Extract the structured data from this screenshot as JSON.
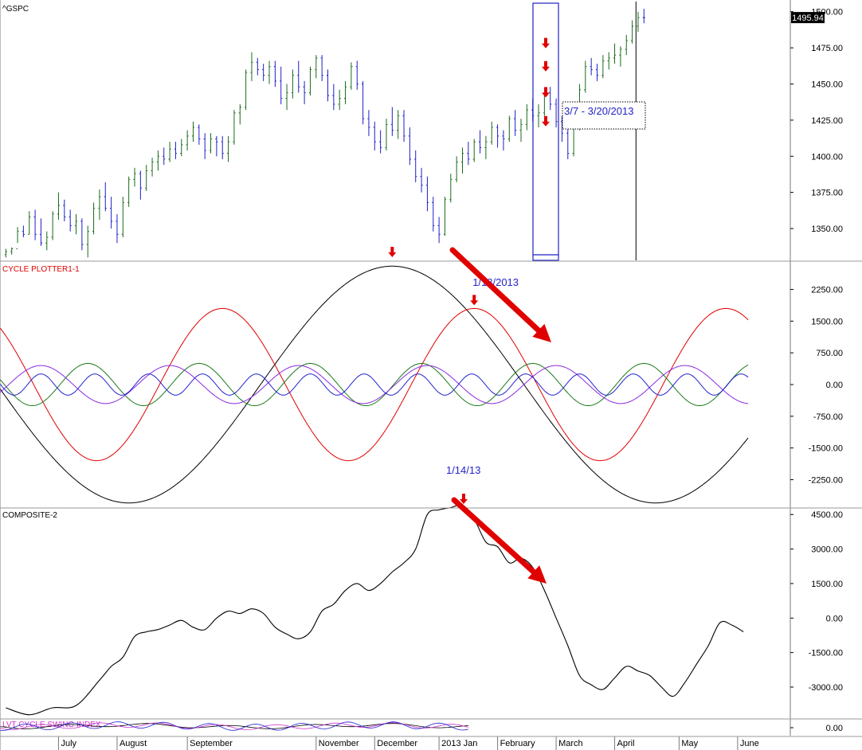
{
  "chart_data": {
    "type": "multi-pane-financial-chart",
    "price_pane": {
      "title": "^GSPC",
      "last_value_label": "1495.94",
      "y_ticks": [
        "1500.00",
        "1475.00",
        "1450.00",
        "1425.00",
        "1400.00",
        "1375.00",
        "1350.00"
      ],
      "ylim": [
        1328,
        1507
      ],
      "colors": {
        "up": "#1a6b1a",
        "down": "#1f1fc8",
        "marker": "#e00000"
      },
      "bars": [
        [
          0,
          1332,
          1336,
          1330,
          1334
        ],
        [
          0.5,
          1334,
          1337,
          1332,
          1336
        ],
        [
          1,
          1336,
          1351,
          1340,
          1348
        ],
        [
          1.5,
          1348,
          1352,
          1344,
          1346
        ],
        [
          2,
          1346,
          1362,
          1346,
          1358
        ],
        [
          2.5,
          1358,
          1363,
          1342,
          1346
        ],
        [
          3,
          1346,
          1357,
          1338,
          1340
        ],
        [
          3.5,
          1340,
          1348,
          1335,
          1344
        ],
        [
          4,
          1344,
          1362,
          1342,
          1360
        ],
        [
          4.5,
          1360,
          1375,
          1356,
          1366
        ],
        [
          5,
          1366,
          1370,
          1355,
          1358
        ],
        [
          5.5,
          1358,
          1363,
          1348,
          1352
        ],
        [
          6,
          1352,
          1360,
          1346,
          1355
        ],
        [
          6.5,
          1355,
          1357,
          1335,
          1339
        ],
        [
          7,
          1339,
          1352,
          1330,
          1348
        ],
        [
          7.5,
          1348,
          1368,
          1346,
          1364
        ],
        [
          8,
          1364,
          1377,
          1356,
          1372
        ],
        [
          8.5,
          1372,
          1382,
          1362,
          1364
        ],
        [
          9,
          1364,
          1372,
          1350,
          1355
        ],
        [
          9.5,
          1355,
          1360,
          1340,
          1346
        ],
        [
          10,
          1346,
          1372,
          1344,
          1368
        ],
        [
          10.5,
          1368,
          1386,
          1365,
          1384
        ],
        [
          11,
          1384,
          1392,
          1379,
          1388
        ],
        [
          11.5,
          1388,
          1390,
          1370,
          1378
        ],
        [
          12,
          1378,
          1394,
          1376,
          1390
        ],
        [
          12.5,
          1390,
          1399,
          1386,
          1396
        ],
        [
          13,
          1396,
          1404,
          1390,
          1400
        ],
        [
          13.5,
          1400,
          1406,
          1394,
          1398
        ],
        [
          14,
          1398,
          1410,
          1396,
          1405
        ],
        [
          14.5,
          1405,
          1410,
          1398,
          1402
        ],
        [
          15,
          1402,
          1412,
          1400,
          1408
        ],
        [
          15.5,
          1408,
          1418,
          1404,
          1414
        ],
        [
          16,
          1414,
          1424,
          1410,
          1420
        ],
        [
          16.5,
          1420,
          1422,
          1408,
          1412
        ],
        [
          17,
          1412,
          1416,
          1398,
          1404
        ],
        [
          17.5,
          1404,
          1416,
          1402,
          1412
        ],
        [
          18,
          1412,
          1414,
          1400,
          1410
        ],
        [
          18.5,
          1410,
          1414,
          1398,
          1402
        ],
        [
          19,
          1402,
          1414,
          1396,
          1410
        ],
        [
          19.5,
          1410,
          1432,
          1408,
          1430
        ],
        [
          20,
          1430,
          1436,
          1422,
          1434
        ],
        [
          20.5,
          1434,
          1460,
          1432,
          1458
        ],
        [
          21,
          1458,
          1472,
          1452,
          1465
        ],
        [
          21.5,
          1465,
          1468,
          1456,
          1460
        ],
        [
          22,
          1460,
          1464,
          1452,
          1456
        ],
        [
          22.5,
          1456,
          1466,
          1450,
          1462
        ],
        [
          23,
          1462,
          1466,
          1448,
          1452
        ],
        [
          23.5,
          1452,
          1462,
          1436,
          1440
        ],
        [
          24,
          1440,
          1450,
          1432,
          1444
        ],
        [
          24.5,
          1444,
          1460,
          1440,
          1456
        ],
        [
          25,
          1456,
          1466,
          1444,
          1448
        ],
        [
          25.5,
          1448,
          1452,
          1436,
          1444
        ],
        [
          26,
          1444,
          1462,
          1442,
          1460
        ],
        [
          26.5,
          1460,
          1470,
          1454,
          1468
        ],
        [
          27,
          1468,
          1470,
          1452,
          1456
        ],
        [
          27.5,
          1456,
          1460,
          1438,
          1442
        ],
        [
          28,
          1442,
          1450,
          1432,
          1436
        ],
        [
          28.5,
          1436,
          1446,
          1432,
          1440
        ],
        [
          29,
          1440,
          1452,
          1436,
          1448
        ],
        [
          29.5,
          1448,
          1465,
          1446,
          1462
        ],
        [
          30,
          1462,
          1466,
          1446,
          1450
        ],
        [
          30.5,
          1450,
          1452,
          1422,
          1426
        ],
        [
          31,
          1426,
          1432,
          1414,
          1420
        ],
        [
          31.5,
          1420,
          1424,
          1404,
          1410
        ],
        [
          32,
          1410,
          1418,
          1402,
          1406
        ],
        [
          32.5,
          1406,
          1426,
          1404,
          1422
        ],
        [
          33,
          1422,
          1434,
          1414,
          1418
        ],
        [
          33.5,
          1418,
          1432,
          1412,
          1428
        ],
        [
          34,
          1428,
          1432,
          1410,
          1414
        ],
        [
          34.5,
          1414,
          1420,
          1394,
          1398
        ],
        [
          35,
          1398,
          1404,
          1382,
          1386
        ],
        [
          35.5,
          1386,
          1392,
          1375,
          1380
        ],
        [
          36,
          1380,
          1386,
          1362,
          1368
        ],
        [
          36.5,
          1368,
          1372,
          1348,
          1352
        ],
        [
          37,
          1352,
          1358,
          1340,
          1346
        ],
        [
          37.5,
          1346,
          1372,
          1345,
          1370
        ],
        [
          38,
          1370,
          1388,
          1368,
          1384
        ],
        [
          38.5,
          1384,
          1400,
          1382,
          1396
        ],
        [
          39,
          1396,
          1406,
          1388,
          1402
        ],
        [
          39.5,
          1402,
          1410,
          1394,
          1398
        ],
        [
          40,
          1398,
          1412,
          1396,
          1410
        ],
        [
          40.5,
          1410,
          1418,
          1402,
          1406
        ],
        [
          41,
          1406,
          1414,
          1398,
          1410
        ],
        [
          41.5,
          1410,
          1424,
          1408,
          1420
        ],
        [
          42,
          1420,
          1422,
          1406,
          1414
        ],
        [
          42.5,
          1414,
          1418,
          1404,
          1412
        ],
        [
          43,
          1412,
          1428,
          1410,
          1426
        ],
        [
          43.5,
          1426,
          1432,
          1414,
          1418
        ],
        [
          44,
          1418,
          1426,
          1410,
          1422
        ],
        [
          44.5,
          1422,
          1436,
          1418,
          1432
        ],
        [
          45,
          1432,
          1440,
          1424,
          1428
        ],
        [
          45.5,
          1428,
          1436,
          1420,
          1430
        ],
        [
          46,
          1430,
          1446,
          1428,
          1444
        ],
        [
          46.5,
          1444,
          1448,
          1432,
          1436
        ],
        [
          47,
          1436,
          1440,
          1420,
          1424
        ],
        [
          47.5,
          1424,
          1428,
          1410,
          1416
        ],
        [
          48,
          1416,
          1420,
          1398,
          1402
        ],
        [
          48.5,
          1402,
          1422,
          1400,
          1420
        ],
        [
          49,
          1420,
          1450,
          1418,
          1446
        ],
        [
          49.5,
          1446,
          1466,
          1444,
          1462
        ],
        [
          50,
          1462,
          1468,
          1456,
          1460
        ],
        [
          50.5,
          1460,
          1464,
          1452,
          1456
        ],
        [
          51,
          1456,
          1470,
          1454,
          1466
        ],
        [
          51.5,
          1466,
          1472,
          1460,
          1468
        ],
        [
          52,
          1468,
          1478,
          1464,
          1470
        ],
        [
          52.5,
          1470,
          1476,
          1462,
          1474
        ],
        [
          53,
          1474,
          1484,
          1470,
          1480
        ],
        [
          53.5,
          1480,
          1494,
          1478,
          1490
        ],
        [
          54,
          1490,
          1500,
          1486,
          1496
        ],
        [
          54.5,
          1496,
          1502,
          1492,
          1495.94
        ]
      ],
      "marker_arrows_y": [
        1478,
        1462,
        1444,
        1424
      ],
      "date_range_label": "3/7 - 3/20/2013"
    },
    "cycle_pane": {
      "title": "CYCLE PLOTTER1-1",
      "y_ticks": [
        "2250.00",
        "1500.00",
        "750.00",
        "0.00",
        "-750.00",
        "-1500.00",
        "-2250.00"
      ],
      "ylim": [
        -2900,
        2900
      ],
      "series": [
        {
          "color": "#000000",
          "amplitude": 2800,
          "period": 45,
          "phase_x": 33.0
        },
        {
          "color": "#e00000",
          "amplitude": 1800,
          "period": 21.5,
          "phase_x": 40.0
        },
        {
          "color": "#1a7a1a",
          "amplitude": 500,
          "period": 9.5,
          "phase_x": 45.0
        },
        {
          "color": "#8a2be2",
          "amplitude": 450,
          "period": 11,
          "phase_x": 36.0
        },
        {
          "color": "#2020d0",
          "amplitude": 250,
          "period": 4.6,
          "phase_x": 39.8
        }
      ],
      "annotation": "1/18/2013",
      "annotation_x": 40.0
    },
    "composite_pane": {
      "title": "COMPOSITE-2",
      "y_ticks": [
        "4500.00",
        "3000.00",
        "1500.00",
        "0.00",
        "-1500.00",
        "-3000.00"
      ],
      "ylim": [
        -4350,
        4750
      ],
      "annotation": "1/14/13",
      "annotation_x": 39.1,
      "points": [
        [
          0,
          -3900
        ],
        [
          2,
          -4200
        ],
        [
          4,
          -3900
        ],
        [
          6,
          -3800
        ],
        [
          8,
          -2700
        ],
        [
          9,
          -2100
        ],
        [
          10,
          -1700
        ],
        [
          11,
          -800
        ],
        [
          12,
          -600
        ],
        [
          13,
          -500
        ],
        [
          14,
          -300
        ],
        [
          15,
          -100
        ],
        [
          16,
          -400
        ],
        [
          17,
          -500
        ],
        [
          18,
          0
        ],
        [
          19,
          300
        ],
        [
          20,
          200
        ],
        [
          21,
          400
        ],
        [
          22,
          200
        ],
        [
          23,
          -400
        ],
        [
          24,
          -700
        ],
        [
          25,
          -900
        ],
        [
          26,
          -600
        ],
        [
          27,
          300
        ],
        [
          28,
          600
        ],
        [
          29,
          1200
        ],
        [
          30,
          1500
        ],
        [
          31,
          1200
        ],
        [
          32,
          1500
        ],
        [
          33,
          2000
        ],
        [
          34,
          2400
        ],
        [
          35,
          3000
        ],
        [
          36,
          4500
        ],
        [
          37,
          4700
        ],
        [
          38,
          4800
        ],
        [
          39,
          4900
        ],
        [
          40,
          4300
        ],
        [
          41,
          3300
        ],
        [
          42,
          3100
        ],
        [
          43,
          2400
        ],
        [
          44,
          2600
        ],
        [
          45,
          2200
        ],
        [
          46,
          1200
        ],
        [
          47,
          0
        ],
        [
          48,
          -1200
        ],
        [
          49,
          -2500
        ],
        [
          50,
          -2900
        ],
        [
          51,
          -3100
        ],
        [
          52,
          -2600
        ],
        [
          53,
          -2100
        ],
        [
          54,
          -2300
        ],
        [
          55,
          -2500
        ],
        [
          56,
          -3000
        ],
        [
          57,
          -3400
        ],
        [
          58,
          -2800
        ],
        [
          59,
          -2000
        ],
        [
          60,
          -1200
        ],
        [
          61,
          -200
        ],
        [
          62,
          -300
        ],
        [
          63,
          -600
        ]
      ]
    },
    "swing_pane": {
      "title": "LVT CYCLE SWING INDEX",
      "y_ticks": [
        "0.00"
      ]
    },
    "x_axis": {
      "x_min": -0.5,
      "x_max": 67,
      "months": [
        {
          "label": "July",
          "x": 4.5
        },
        {
          "label": "August",
          "x": 9.5
        },
        {
          "label": "September",
          "x": 15.5
        },
        {
          "label": "November",
          "x": 26.5
        },
        {
          "label": "December",
          "x": 31.5
        },
        {
          "label": "2013 Jan",
          "x": 37.0
        },
        {
          "label": "February",
          "x": 42.0
        },
        {
          "label": "March",
          "x": 47.0
        },
        {
          "label": "April",
          "x": 52.0
        },
        {
          "label": "May",
          "x": 57.5
        },
        {
          "label": "June",
          "x": 62.5
        }
      ]
    }
  }
}
